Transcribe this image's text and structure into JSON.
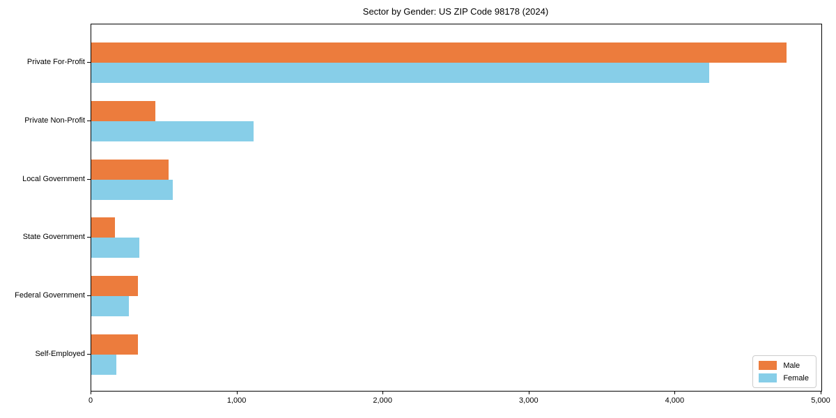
{
  "chart_data": {
    "type": "bar",
    "orientation": "horizontal",
    "title": "Sector by Gender: US ZIP Code 98178 (2024)",
    "categories": [
      "Private For-Profit",
      "Private Non-Profit",
      "Local Government",
      "State Government",
      "Federal Government",
      "Self-Employed"
    ],
    "series": [
      {
        "name": "Male",
        "color": "#EC7C3D",
        "values": [
          4760,
          440,
          530,
          160,
          320,
          320
        ]
      },
      {
        "name": "Female",
        "color": "#87CEE8",
        "values": [
          4230,
          1110,
          560,
          330,
          260,
          170
        ]
      }
    ],
    "xlabel": "",
    "ylabel": "",
    "xlim": [
      0,
      5000
    ],
    "xticks": [
      "0",
      "1,000",
      "2,000",
      "3,000",
      "4,000",
      "5,000"
    ],
    "xtick_values": [
      0,
      1000,
      2000,
      3000,
      4000,
      5000
    ],
    "grid": false,
    "legend_position": "lower right"
  }
}
